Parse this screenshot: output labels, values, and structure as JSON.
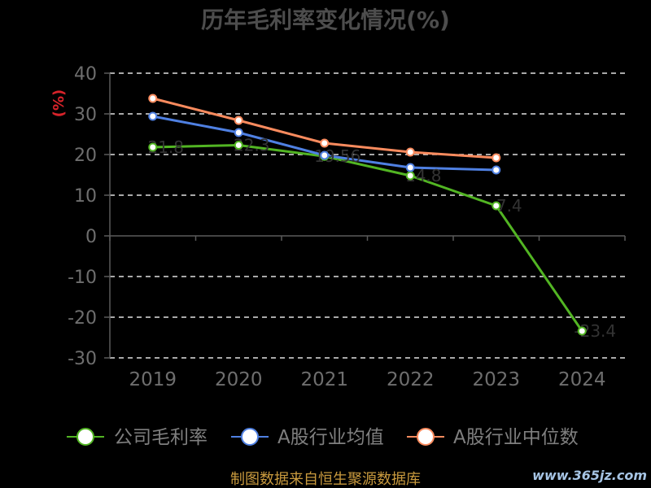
{
  "colors": {
    "background": "#000000",
    "title": "#4d4d4d",
    "axis_text": "#6e6e6e",
    "legend_text": "#7f7f7f",
    "axis_line": "#5a5a5a",
    "grid": "#e0e0e0",
    "unit_label": "#d8232a",
    "data_label": "#333333",
    "footer": "#c99a3e",
    "watermark": "#a6c4e4",
    "marker_fill": "#ffffff"
  },
  "footer": {
    "source": "制图数据来自恒生聚源数据库"
  },
  "watermark": {
    "text": "www.365jz.com"
  },
  "chart_data": {
    "type": "line",
    "title": "历年毛利率变化情况(%)",
    "xlabel": "",
    "ylabel": "(%)",
    "categories": [
      "2019",
      "2020",
      "2021",
      "2022",
      "2023",
      "2024"
    ],
    "ylim": [
      -30,
      40
    ],
    "yticks": [
      40,
      30,
      20,
      10,
      0,
      -10,
      -20,
      -30
    ],
    "grid": true,
    "grid_style": "dashed",
    "legend_position": "bottom",
    "series": [
      {
        "name": "公司毛利率",
        "color": "#52b523",
        "values": [
          21.8,
          22.3,
          19.56,
          14.8,
          7.4,
          -23.4
        ],
        "data_labels": true
      },
      {
        "name": "A股行业均值",
        "color": "#4f80e2",
        "values": [
          29.4,
          25.4,
          19.8,
          16.8,
          16.2,
          null
        ],
        "data_labels": false
      },
      {
        "name": "A股行业中位数",
        "color": "#fa8b5e",
        "values": [
          33.8,
          28.4,
          22.8,
          20.6,
          19.2,
          null
        ],
        "data_labels": false
      }
    ]
  }
}
